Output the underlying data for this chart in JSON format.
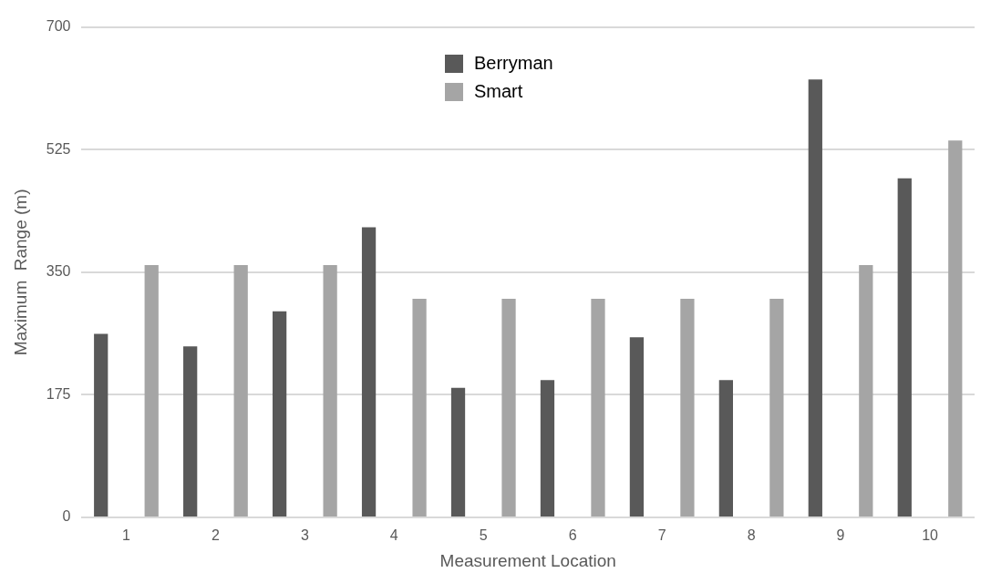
{
  "chart_data": {
    "type": "bar",
    "xlabel": "Measurement Location",
    "ylabel": "Maximum  Range (m)",
    "categories": [
      "1",
      "2",
      "3",
      "4",
      "5",
      "6",
      "7",
      "8",
      "9",
      "10"
    ],
    "series": [
      {
        "name": "Berryman",
        "color": "#595959",
        "values": [
          262,
          244,
          294,
          414,
          185,
          196,
          257,
          196,
          625,
          484
        ]
      },
      {
        "color": "#ffc000",
        "values": [
          0,
          0,
          0,
          0,
          0,
          0,
          0,
          0,
          0,
          0
        ]
      },
      {
        "name": "Smart",
        "color": "#a5a5a5",
        "values": [
          360,
          360,
          360,
          312,
          312,
          312,
          312,
          312,
          360,
          538
        ]
      }
    ],
    "ylim": [
      0,
      700
    ],
    "yticks": [
      0,
      175,
      350,
      525,
      700
    ],
    "grid": "y",
    "legend": "top"
  }
}
